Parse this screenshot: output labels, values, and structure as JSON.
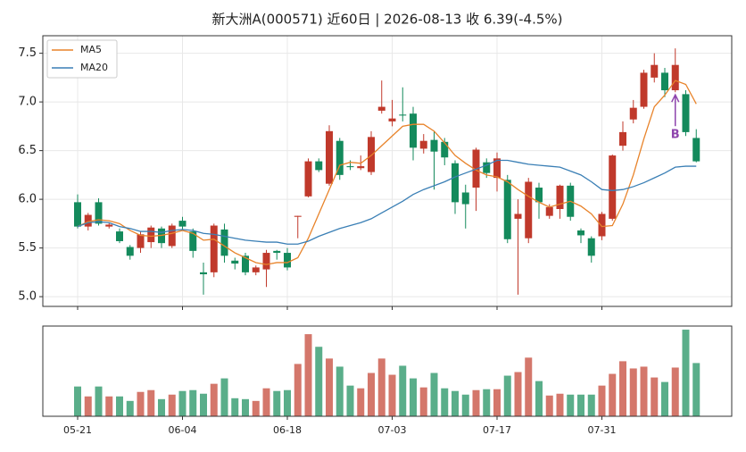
{
  "chart_data": [
    {
      "type": "candlestick",
      "title": "新大洲A(000571) 近60日  |  2026-08-13 收 6.39(-4.5%)",
      "open": [
        5.97,
        5.72,
        5.97,
        5.72,
        5.67,
        5.51,
        5.5,
        5.56,
        5.7,
        5.52,
        5.78,
        5.67,
        5.25,
        5.25,
        5.69,
        5.37,
        5.42,
        5.25,
        5.28,
        5.47,
        5.45,
        5.82,
        6.03,
        6.39,
        6.16,
        6.6,
        6.34,
        6.32,
        6.28,
        6.91,
        6.8,
        6.87,
        6.88,
        6.52,
        6.61,
        6.59,
        6.37,
        6.07,
        6.12,
        6.38,
        6.22,
        6.2,
        5.8,
        5.6,
        6.12,
        5.83,
        5.9,
        6.14,
        5.68,
        5.6,
        5.62,
        5.8,
        6.55,
        6.82,
        6.95,
        7.25,
        7.3,
        7.12,
        7.08,
        6.63
      ],
      "high": [
        6.05,
        5.86,
        6.01,
        5.76,
        5.7,
        5.53,
        5.67,
        5.73,
        5.72,
        5.75,
        5.82,
        5.7,
        5.35,
        5.75,
        5.75,
        5.4,
        5.45,
        5.32,
        5.48,
        5.48,
        5.5,
        5.83,
        6.42,
        6.42,
        6.76,
        6.63,
        6.4,
        6.45,
        6.7,
        7.22,
        7.02,
        7.15,
        6.95,
        6.67,
        6.7,
        6.63,
        6.4,
        6.15,
        6.53,
        6.42,
        6.48,
        6.25,
        6.0,
        6.22,
        6.17,
        5.95,
        6.15,
        6.17,
        5.7,
        5.62,
        5.87,
        6.46,
        6.8,
        7.02,
        7.33,
        7.5,
        7.35,
        7.55,
        7.12,
        6.72
      ],
      "low": [
        5.7,
        5.68,
        5.73,
        5.7,
        5.55,
        5.38,
        5.45,
        5.5,
        5.5,
        5.5,
        5.68,
        5.4,
        5.02,
        5.2,
        5.35,
        5.28,
        5.22,
        5.22,
        5.1,
        5.38,
        5.27,
        5.6,
        6.02,
        6.28,
        6.14,
        6.2,
        6.3,
        6.3,
        6.25,
        6.88,
        6.75,
        6.8,
        6.4,
        6.47,
        6.1,
        6.35,
        5.85,
        5.7,
        5.88,
        6.22,
        6.08,
        5.55,
        5.02,
        5.55,
        5.8,
        5.8,
        5.8,
        5.78,
        5.55,
        5.35,
        5.58,
        5.78,
        6.5,
        6.78,
        6.93,
        7.2,
        7.05,
        7.1,
        6.65,
        6.38
      ],
      "close": [
        5.72,
        5.84,
        5.75,
        5.74,
        5.57,
        5.42,
        5.64,
        5.71,
        5.55,
        5.73,
        5.72,
        5.47,
        5.23,
        5.73,
        5.42,
        5.34,
        5.25,
        5.3,
        5.45,
        5.45,
        5.3,
        5.83,
        6.39,
        6.3,
        6.7,
        6.25,
        6.33,
        6.34,
        6.64,
        6.95,
        6.83,
        6.86,
        6.53,
        6.6,
        6.49,
        6.43,
        5.97,
        5.95,
        6.51,
        6.27,
        6.42,
        5.59,
        5.85,
        6.18,
        5.97,
        5.92,
        6.14,
        5.82,
        5.63,
        5.42,
        5.85,
        6.45,
        6.69,
        6.94,
        7.3,
        7.38,
        7.12,
        7.38,
        6.69,
        6.39
      ],
      "up_color": "#c0392b",
      "down_color": "#148a5c",
      "series": [
        {
          "name": "MA5",
          "color": "#e8832a",
          "values": [
            5.72,
            5.77,
            5.79,
            5.78,
            5.75,
            5.68,
            5.63,
            5.62,
            5.63,
            5.65,
            5.68,
            5.65,
            5.58,
            5.59,
            5.52,
            5.45,
            5.4,
            5.35,
            5.33,
            5.35,
            5.35,
            5.4,
            5.6,
            5.85,
            6.1,
            6.35,
            6.38,
            6.37,
            6.45,
            6.55,
            6.65,
            6.75,
            6.77,
            6.77,
            6.7,
            6.58,
            6.45,
            6.37,
            6.3,
            6.25,
            6.23,
            6.18,
            6.1,
            6.03,
            5.97,
            5.92,
            5.95,
            5.98,
            5.93,
            5.85,
            5.72,
            5.73,
            5.95,
            6.25,
            6.62,
            6.95,
            7.07,
            7.22,
            7.18,
            6.98
          ]
        },
        {
          "name": "MA20",
          "color": "#3a7fb5",
          "values": [
            5.72,
            5.76,
            5.77,
            5.76,
            5.72,
            5.7,
            5.67,
            5.67,
            5.66,
            5.68,
            5.69,
            5.68,
            5.65,
            5.64,
            5.62,
            5.6,
            5.58,
            5.57,
            5.56,
            5.56,
            5.54,
            5.54,
            5.57,
            5.62,
            5.66,
            5.7,
            5.73,
            5.76,
            5.8,
            5.86,
            5.92,
            5.98,
            6.05,
            6.1,
            6.14,
            6.18,
            6.23,
            6.27,
            6.31,
            6.35,
            6.4,
            6.4,
            6.38,
            6.36,
            6.35,
            6.34,
            6.33,
            6.29,
            6.25,
            6.18,
            6.1,
            6.09,
            6.1,
            6.13,
            6.17,
            6.22,
            6.27,
            6.33,
            6.34,
            6.34
          ]
        }
      ],
      "ylim": [
        4.9,
        7.68
      ],
      "yticks": [
        {
          "value": 5,
          "label": "5.0"
        },
        5.5,
        {
          "value": 6,
          "label": "6.0"
        },
        6.5,
        {
          "value": 7,
          "label": "7.0"
        },
        7.5
      ],
      "grid": true,
      "legend": "upper left",
      "annotations": [
        {
          "text": "B",
          "color": "#8e44ad"
        }
      ]
    },
    {
      "type": "bar",
      "categories": [
        "05-21",
        null,
        null,
        null,
        null,
        null,
        null,
        null,
        null,
        null,
        "06-04",
        null,
        null,
        null,
        null,
        null,
        null,
        null,
        null,
        null,
        "06-18",
        null,
        null,
        null,
        null,
        null,
        null,
        null,
        null,
        null,
        "07-03",
        null,
        null,
        null,
        null,
        null,
        null,
        null,
        null,
        null,
        "07-17",
        null,
        null,
        null,
        null,
        null,
        null,
        null,
        null,
        null,
        "07-31",
        null,
        null,
        null,
        null,
        null,
        null,
        null,
        null,
        null
      ],
      "values": [
        33,
        22,
        33,
        22,
        22,
        17,
        27,
        29,
        19,
        24,
        28,
        29,
        25,
        36,
        42,
        20,
        19,
        17,
        31,
        28,
        29,
        58,
        91,
        77,
        64,
        55,
        34,
        31,
        48,
        64,
        46,
        56,
        42,
        32,
        48,
        31,
        28,
        24,
        29,
        30,
        30,
        45,
        49,
        65,
        39,
        23,
        25,
        24,
        24,
        24,
        34,
        47,
        61,
        53,
        55,
        43,
        38,
        54,
        96,
        59
      ],
      "up_color": "#d4776b",
      "down_color": "#5aae8a",
      "ylim": [
        0,
        100
      ]
    }
  ]
}
